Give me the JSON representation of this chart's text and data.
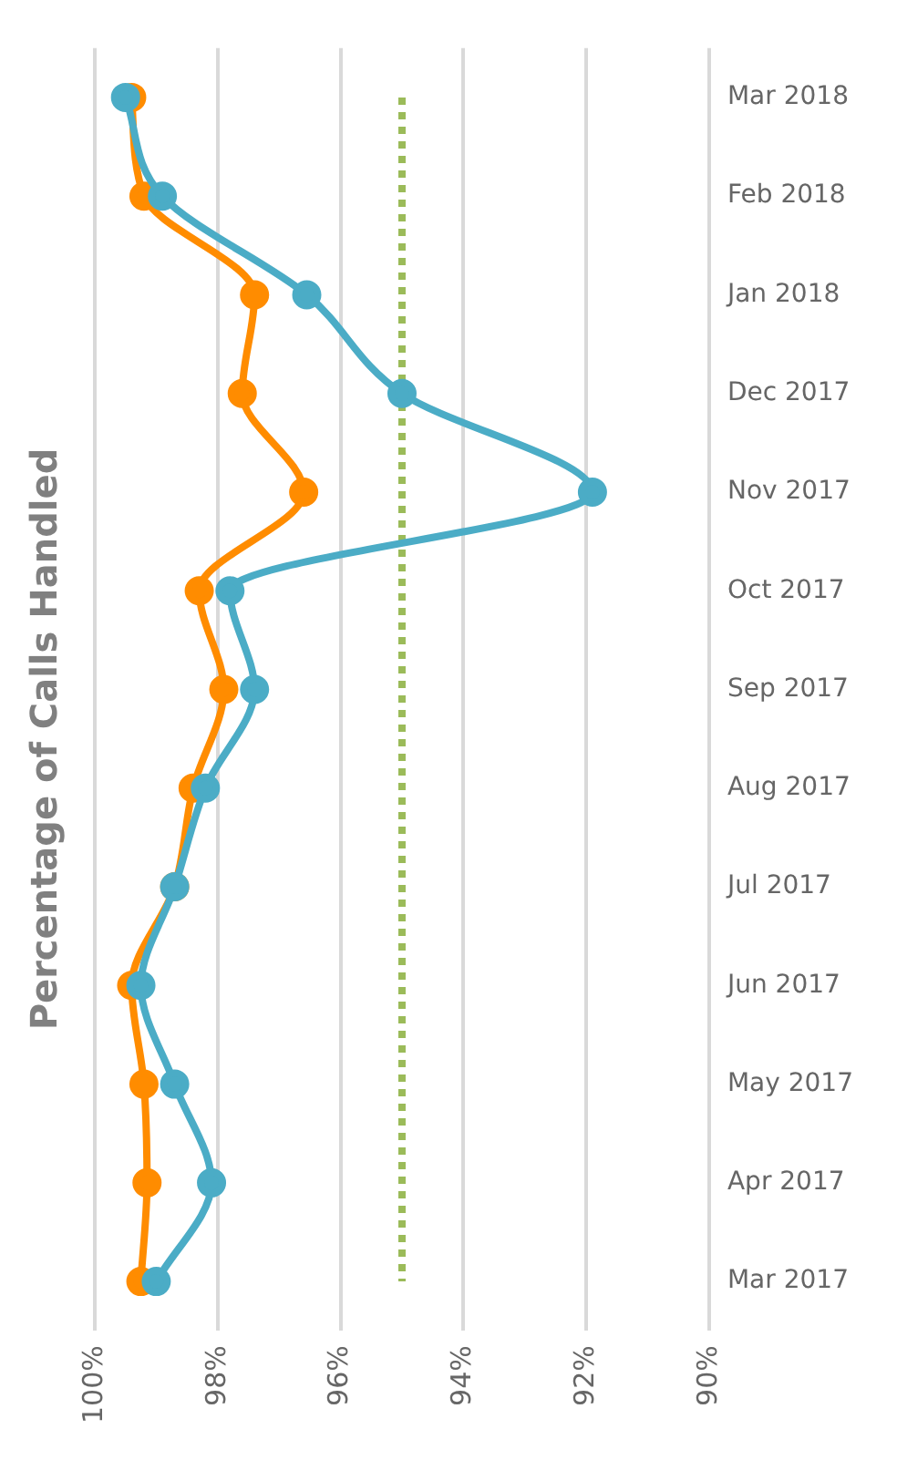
{
  "chart_data": {
    "type": "line",
    "title": "Percentage of Calls Handled",
    "orientation": "horizontal",
    "categories": [
      "Mar 2018",
      "Feb 2018",
      "Jan 2018",
      "Dec 2017",
      "Nov 2017",
      "Oct 2017",
      "Sep 2017",
      "Aug 2017",
      "Jul 2017",
      "Jun 2017",
      "May 2017",
      "Apr 2017",
      "Mar 2017"
    ],
    "series": [
      {
        "color": "#4bacc6",
        "marker": "circle",
        "line_style": "solid",
        "values": [
          99.5,
          98.9,
          96.55,
          95.0,
          91.9,
          97.8,
          97.4,
          98.2,
          98.7,
          99.25,
          98.7,
          98.1,
          99.0
        ]
      },
      {
        "color": "#ff8c00",
        "marker": "circle",
        "line_style": "solid",
        "values": [
          99.4,
          99.2,
          97.4,
          97.6,
          96.6,
          98.3,
          97.9,
          98.4,
          98.7,
          99.4,
          99.2,
          99.15,
          99.25
        ]
      },
      {
        "color": "#9bbb59",
        "marker": "none",
        "line_style": "dotted",
        "values": [
          95,
          95,
          95,
          95,
          95,
          95,
          95,
          95,
          95,
          95,
          95,
          95,
          95
        ]
      }
    ],
    "xlim": [
      100,
      90
    ],
    "xticks": [
      {
        "value": 100,
        "label": "100%"
      },
      {
        "value": 98,
        "label": "98%"
      },
      {
        "value": 96,
        "label": "96%"
      },
      {
        "value": 94,
        "label": "94%"
      },
      {
        "value": 92,
        "label": "92%"
      },
      {
        "value": 90,
        "label": "90%"
      }
    ],
    "grid": "x",
    "legend": false
  }
}
